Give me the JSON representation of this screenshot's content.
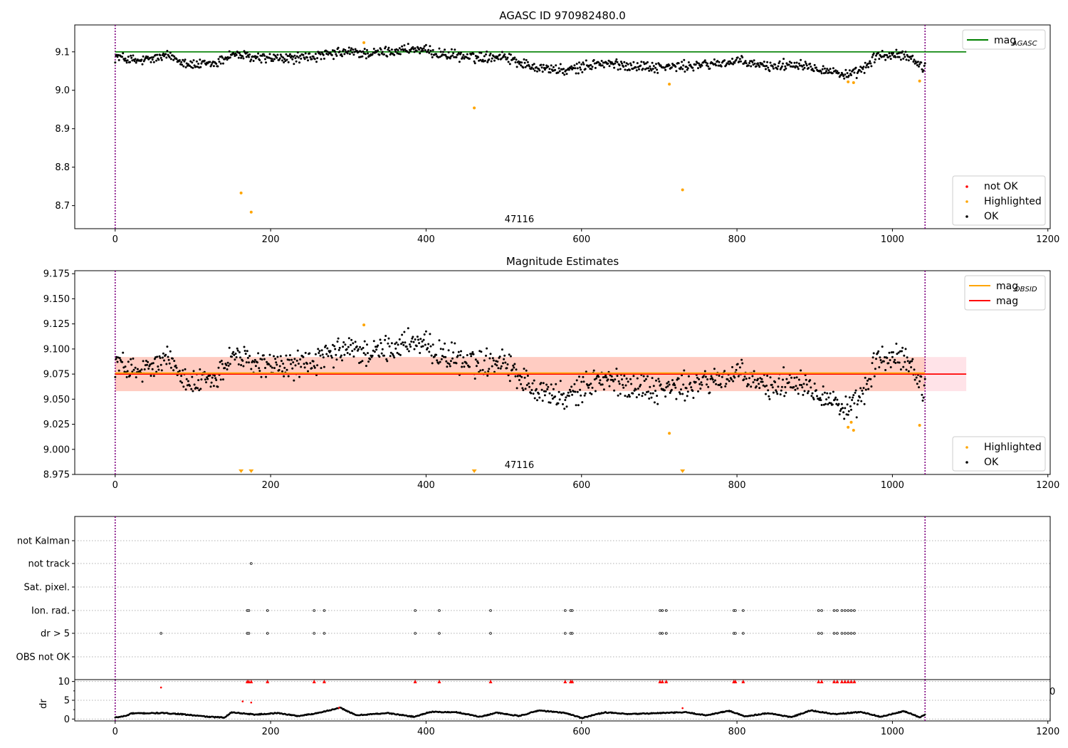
{
  "chart_data": [
    {
      "type": "scatter",
      "title": "AGASC ID 970982480.0",
      "annotation": "47116",
      "xlim": [
        -52,
        1203
      ],
      "ylim": [
        8.64,
        9.17
      ],
      "xticks": [
        0,
        200,
        400,
        600,
        800,
        1000,
        1200
      ],
      "yticks": [
        8.7,
        8.8,
        8.9,
        9.0,
        9.1
      ],
      "ytick_labels": [
        "8.7",
        "8.8",
        "8.9",
        "9.0",
        "9.1"
      ],
      "vlines": [
        0,
        1042
      ],
      "hline": {
        "name": "mag",
        "sub": "AGASC",
        "y": 9.1,
        "x0": 0,
        "x1": 1095
      },
      "legend_lines": [
        "mag AGASC"
      ],
      "legend_points": [
        "not OK",
        "Highlighted",
        "OK"
      ],
      "highlighted": [
        [
          162,
          8.733
        ],
        [
          175,
          8.683
        ],
        [
          320,
          9.124
        ],
        [
          462,
          8.954
        ],
        [
          713,
          9.016
        ],
        [
          730,
          8.741
        ],
        [
          943,
          9.022
        ],
        [
          950,
          9.02
        ],
        [
          1035,
          9.024
        ]
      ],
      "ok_trend": [
        [
          0,
          9.088
        ],
        [
          30,
          9.075
        ],
        [
          70,
          9.09
        ],
        [
          100,
          9.065
        ],
        [
          130,
          9.07
        ],
        [
          150,
          9.095
        ],
        [
          175,
          9.085
        ],
        [
          220,
          9.082
        ],
        [
          260,
          9.088
        ],
        [
          300,
          9.1
        ],
        [
          330,
          9.095
        ],
        [
          380,
          9.108
        ],
        [
          420,
          9.095
        ],
        [
          460,
          9.085
        ],
        [
          500,
          9.09
        ],
        [
          530,
          9.065
        ],
        [
          580,
          9.05
        ],
        [
          620,
          9.07
        ],
        [
          660,
          9.065
        ],
        [
          700,
          9.06
        ],
        [
          740,
          9.063
        ],
        [
          800,
          9.075
        ],
        [
          840,
          9.062
        ],
        [
          880,
          9.07
        ],
        [
          910,
          9.055
        ],
        [
          945,
          9.038
        ],
        [
          960,
          9.05
        ],
        [
          980,
          9.09
        ],
        [
          1020,
          9.09
        ],
        [
          1040,
          9.06
        ]
      ]
    },
    {
      "type": "scatter",
      "title": "Magnitude Estimates",
      "annotation": "47116",
      "xlim": [
        -52,
        1203
      ],
      "ylim": [
        8.975,
        9.178
      ],
      "xticks": [
        0,
        200,
        400,
        600,
        800,
        1000,
        1200
      ],
      "yticks": [
        8.975,
        9.0,
        9.025,
        9.05,
        9.075,
        9.1,
        9.125,
        9.15,
        9.175
      ],
      "ytick_labels": [
        "8.975",
        "9.000",
        "9.025",
        "9.050",
        "9.075",
        "9.100",
        "9.125",
        "9.150",
        "9.175"
      ],
      "vlines": [
        0,
        1042
      ],
      "mag": {
        "name": "mag",
        "y": 9.075,
        "band": [
          9.058,
          9.092
        ],
        "x0": 0,
        "x1": 1095
      },
      "mag_obsid": {
        "name": "mag",
        "sub": "OBSID",
        "y": 9.076,
        "band": [
          9.058,
          9.092
        ],
        "x0": 0,
        "x1": 1042
      },
      "legend_lines": [
        "mag OBSID",
        "mag"
      ],
      "legend_points": [
        "Highlighted",
        "OK"
      ],
      "highlighted": [
        [
          320,
          9.124
        ],
        [
          713,
          9.016
        ],
        [
          943,
          9.022
        ],
        [
          947,
          9.027
        ],
        [
          950,
          9.019
        ],
        [
          1035,
          9.024
        ]
      ],
      "below_range_markers": [
        162,
        175,
        462,
        730
      ],
      "ok_trend": [
        [
          0,
          9.088
        ],
        [
          30,
          9.075
        ],
        [
          70,
          9.09
        ],
        [
          100,
          9.065
        ],
        [
          130,
          9.07
        ],
        [
          150,
          9.095
        ],
        [
          175,
          9.085
        ],
        [
          220,
          9.082
        ],
        [
          260,
          9.088
        ],
        [
          300,
          9.1
        ],
        [
          330,
          9.095
        ],
        [
          380,
          9.108
        ],
        [
          420,
          9.095
        ],
        [
          460,
          9.085
        ],
        [
          500,
          9.09
        ],
        [
          530,
          9.065
        ],
        [
          580,
          9.05
        ],
        [
          620,
          9.07
        ],
        [
          660,
          9.065
        ],
        [
          700,
          9.06
        ],
        [
          740,
          9.063
        ],
        [
          800,
          9.075
        ],
        [
          840,
          9.062
        ],
        [
          880,
          9.07
        ],
        [
          910,
          9.055
        ],
        [
          945,
          9.038
        ],
        [
          960,
          9.05
        ],
        [
          980,
          9.09
        ],
        [
          1020,
          9.09
        ],
        [
          1040,
          9.06
        ]
      ]
    },
    {
      "type": "scatter",
      "title": "",
      "xlim": [
        -52,
        1203
      ],
      "xticks": [
        0,
        200,
        400,
        600,
        800,
        1000,
        1200
      ],
      "vlines": [
        0,
        1042
      ],
      "flag_rows": [
        "not Kalman",
        "not track",
        "Sat. pixel.",
        "Ion. rad.",
        "dr > 5",
        "OBS not OK"
      ],
      "flags": {
        "not track": [
          175
        ],
        "Ion. rad.": [
          170,
          172,
          196,
          256,
          269,
          386,
          417,
          483,
          579,
          586,
          588,
          701,
          704,
          709,
          796,
          798,
          808,
          905,
          909,
          925,
          929,
          935,
          939,
          943,
          947,
          951
        ],
        "dr > 5": [
          59,
          170,
          172,
          196,
          256,
          269,
          386,
          417,
          483,
          579,
          586,
          588,
          701,
          704,
          709,
          796,
          798,
          808,
          905,
          909,
          925,
          929,
          935,
          939,
          943,
          947,
          951
        ]
      }
    },
    {
      "type": "scatter",
      "title": "",
      "ylabel": "dr",
      "xlim": [
        -52,
        1203
      ],
      "ylim": [
        -0.5,
        10.5
      ],
      "xticks": [
        0,
        200,
        400,
        600,
        800,
        1000,
        1200
      ],
      "yticks": [
        0,
        5,
        10
      ],
      "ytick_labels": [
        "0",
        "5",
        "10"
      ],
      "extra_label": "0",
      "vlines": [
        0,
        1042
      ],
      "clipped_top": [
        170,
        172,
        175,
        196,
        256,
        269,
        386,
        417,
        483,
        579,
        586,
        588,
        701,
        704,
        709,
        796,
        798,
        808,
        905,
        909,
        925,
        929,
        935,
        939,
        943,
        947,
        951
      ],
      "red_points": [
        [
          59,
          8.4
        ],
        [
          164,
          4.7
        ],
        [
          175,
          4.4
        ],
        [
          288,
          3.0
        ],
        [
          730,
          2.9
        ]
      ],
      "ok_trend": [
        [
          0,
          0.4
        ],
        [
          15,
          0.9
        ],
        [
          20,
          1.5
        ],
        [
          60,
          1.6
        ],
        [
          80,
          1.4
        ],
        [
          95,
          1.1
        ],
        [
          120,
          0.6
        ],
        [
          140,
          0.4
        ],
        [
          150,
          1.8
        ],
        [
          180,
          1.2
        ],
        [
          210,
          1.6
        ],
        [
          235,
          0.8
        ],
        [
          255,
          1.4
        ],
        [
          275,
          2.3
        ],
        [
          290,
          3.0
        ],
        [
          310,
          1.0
        ],
        [
          350,
          1.6
        ],
        [
          385,
          0.6
        ],
        [
          405,
          1.9
        ],
        [
          440,
          1.8
        ],
        [
          470,
          0.6
        ],
        [
          490,
          1.7
        ],
        [
          520,
          0.8
        ],
        [
          545,
          2.3
        ],
        [
          580,
          1.6
        ],
        [
          600,
          0.3
        ],
        [
          630,
          1.8
        ],
        [
          660,
          1.3
        ],
        [
          700,
          1.6
        ],
        [
          735,
          1.8
        ],
        [
          760,
          1.0
        ],
        [
          790,
          2.2
        ],
        [
          810,
          0.7
        ],
        [
          840,
          1.6
        ],
        [
          870,
          0.5
        ],
        [
          895,
          2.3
        ],
        [
          925,
          1.3
        ],
        [
          960,
          1.9
        ],
        [
          985,
          0.6
        ],
        [
          1015,
          2.1
        ],
        [
          1035,
          0.5
        ],
        [
          1042,
          1.1
        ]
      ]
    }
  ],
  "colors": {
    "ok": "#000000",
    "highlighted": "#ffa500",
    "not_ok": "#ff0000",
    "mag_agasc_line": "#008000",
    "mag_line": "#ff0000",
    "mag_obsid_line": "#ffa500",
    "vline": "#800080",
    "grid": "#b0b0b0"
  }
}
